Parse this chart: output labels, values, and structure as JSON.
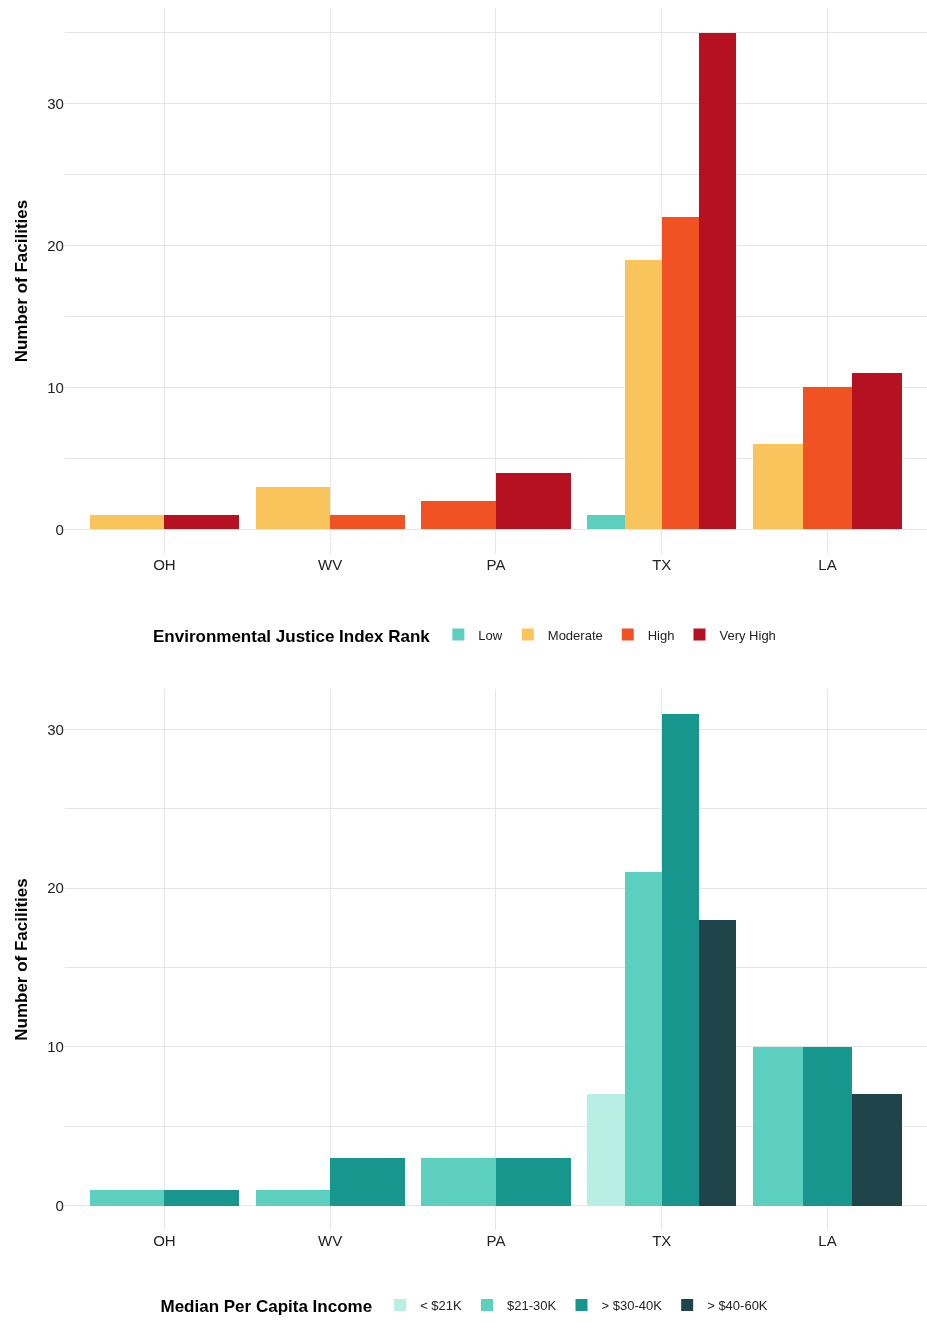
{
  "chart_data": [
    {
      "type": "bar",
      "ylabel": "Number of Facilities",
      "legend_title": "Environmental Justice Index Rank",
      "legend": "bottom",
      "grid": true,
      "categories": [
        "OH",
        "WV",
        "PA",
        "TX",
        "LA"
      ],
      "ylim": [
        -1.75,
        36.75
      ],
      "yticks": [
        0,
        {
          "value": 5,
          "label": null
        },
        10,
        {
          "value": 15,
          "label": null
        },
        20,
        {
          "value": 25,
          "label": null
        },
        30,
        {
          "value": 35,
          "label": null
        }
      ],
      "series": [
        {
          "name": "Low",
          "color": "#5ccfbf",
          "values": [
            null,
            null,
            null,
            1,
            null
          ]
        },
        {
          "name": "Moderate",
          "color": "#f9c45c",
          "values": [
            1,
            3,
            null,
            19,
            6
          ]
        },
        {
          "name": "High",
          "color": "#f05223",
          "values": [
            null,
            1,
            2,
            22,
            10
          ]
        },
        {
          "name": "Very High",
          "color": "#b51120",
          "values": [
            1,
            null,
            4,
            35,
            11
          ]
        }
      ]
    },
    {
      "type": "bar",
      "ylabel": "Number of Facilities",
      "legend_title": "Median Per Capita Income",
      "legend": "bottom",
      "grid": true,
      "categories": [
        "OH",
        "WV",
        "PA",
        "TX",
        "LA"
      ],
      "ylim": [
        -1.55,
        32.55
      ],
      "yticks": [
        0,
        {
          "value": 5,
          "label": null
        },
        10,
        {
          "value": 15,
          "label": null
        },
        20,
        {
          "value": 25,
          "label": null
        },
        30
      ],
      "series": [
        {
          "name": "< $21K",
          "color": "#b8eee3",
          "values": [
            null,
            null,
            null,
            7,
            null
          ]
        },
        {
          "name": "$21-30K",
          "color": "#5ccfbf",
          "values": [
            1,
            1,
            3,
            21,
            10
          ]
        },
        {
          "name": "> $30-40K",
          "color": "#16968c",
          "values": [
            1,
            3,
            3,
            31,
            10
          ]
        },
        {
          "name": "> $40-60K",
          "color": "#1f4449",
          "values": [
            null,
            null,
            null,
            18,
            7
          ]
        }
      ]
    }
  ]
}
